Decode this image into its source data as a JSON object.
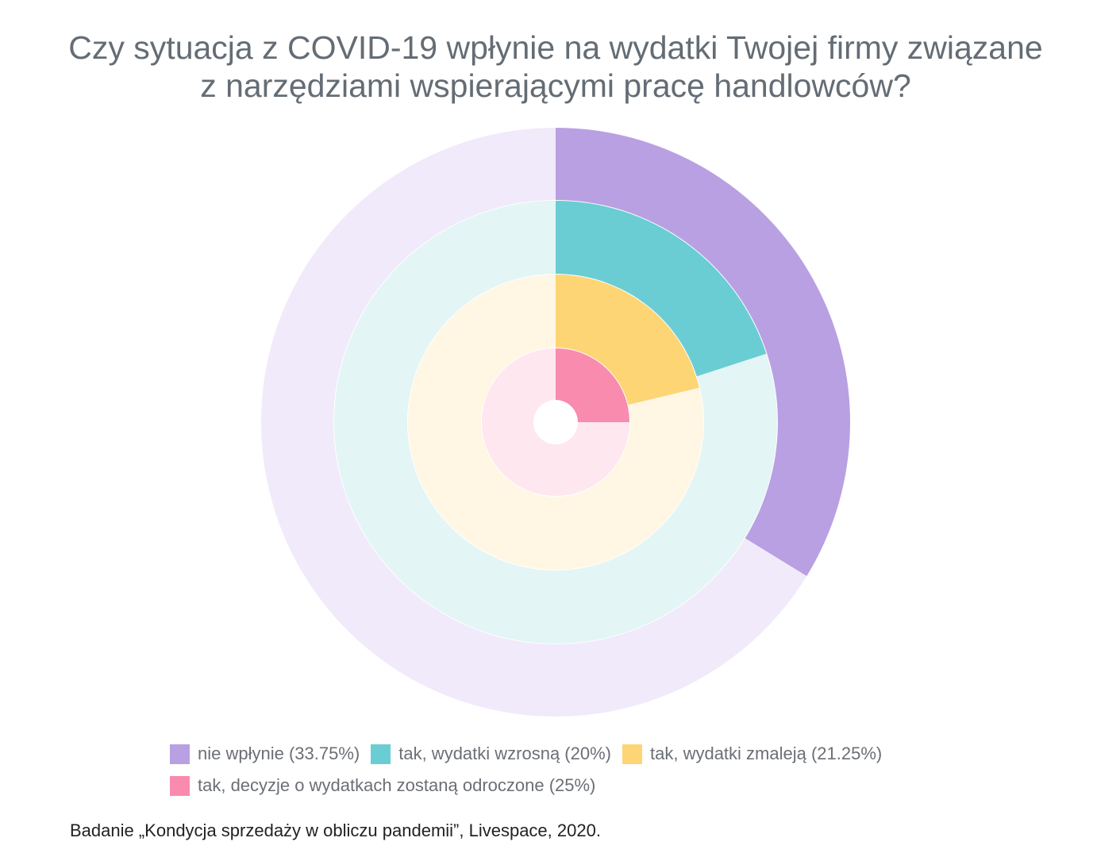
{
  "title": {
    "line1": "Czy sytuacja z COVID-19 wpłynie na wydatki Twojej firmy związane",
    "line2": "z narzędziami wspierającymi pracę handlowców?"
  },
  "chart_data": {
    "type": "radial-bar",
    "max_percent": 100,
    "series": [
      {
        "name": "nie wpłynie (33.75%)",
        "value": 33.75,
        "color": "#b9a0e2",
        "track_color": "#f0eafa"
      },
      {
        "name": "tak, wydatki wzrosną (20%)",
        "value": 20,
        "color": "#6acdd4",
        "track_color": "#e3f5f5"
      },
      {
        "name": "tak, wydatki zmaleją (21.25%)",
        "value": 21.25,
        "color": "#fdd575",
        "track_color": "#fff6e4"
      },
      {
        "name": "tak, decyzje o wydatkach zostaną odroczone (25%)",
        "value": 25,
        "color": "#f98bae",
        "track_color": "#fee7ee"
      }
    ],
    "legend_position": "bottom"
  },
  "source": "Badanie „Kondycja sprzedaży w obliczu pandemii”, Livespace, 2020."
}
